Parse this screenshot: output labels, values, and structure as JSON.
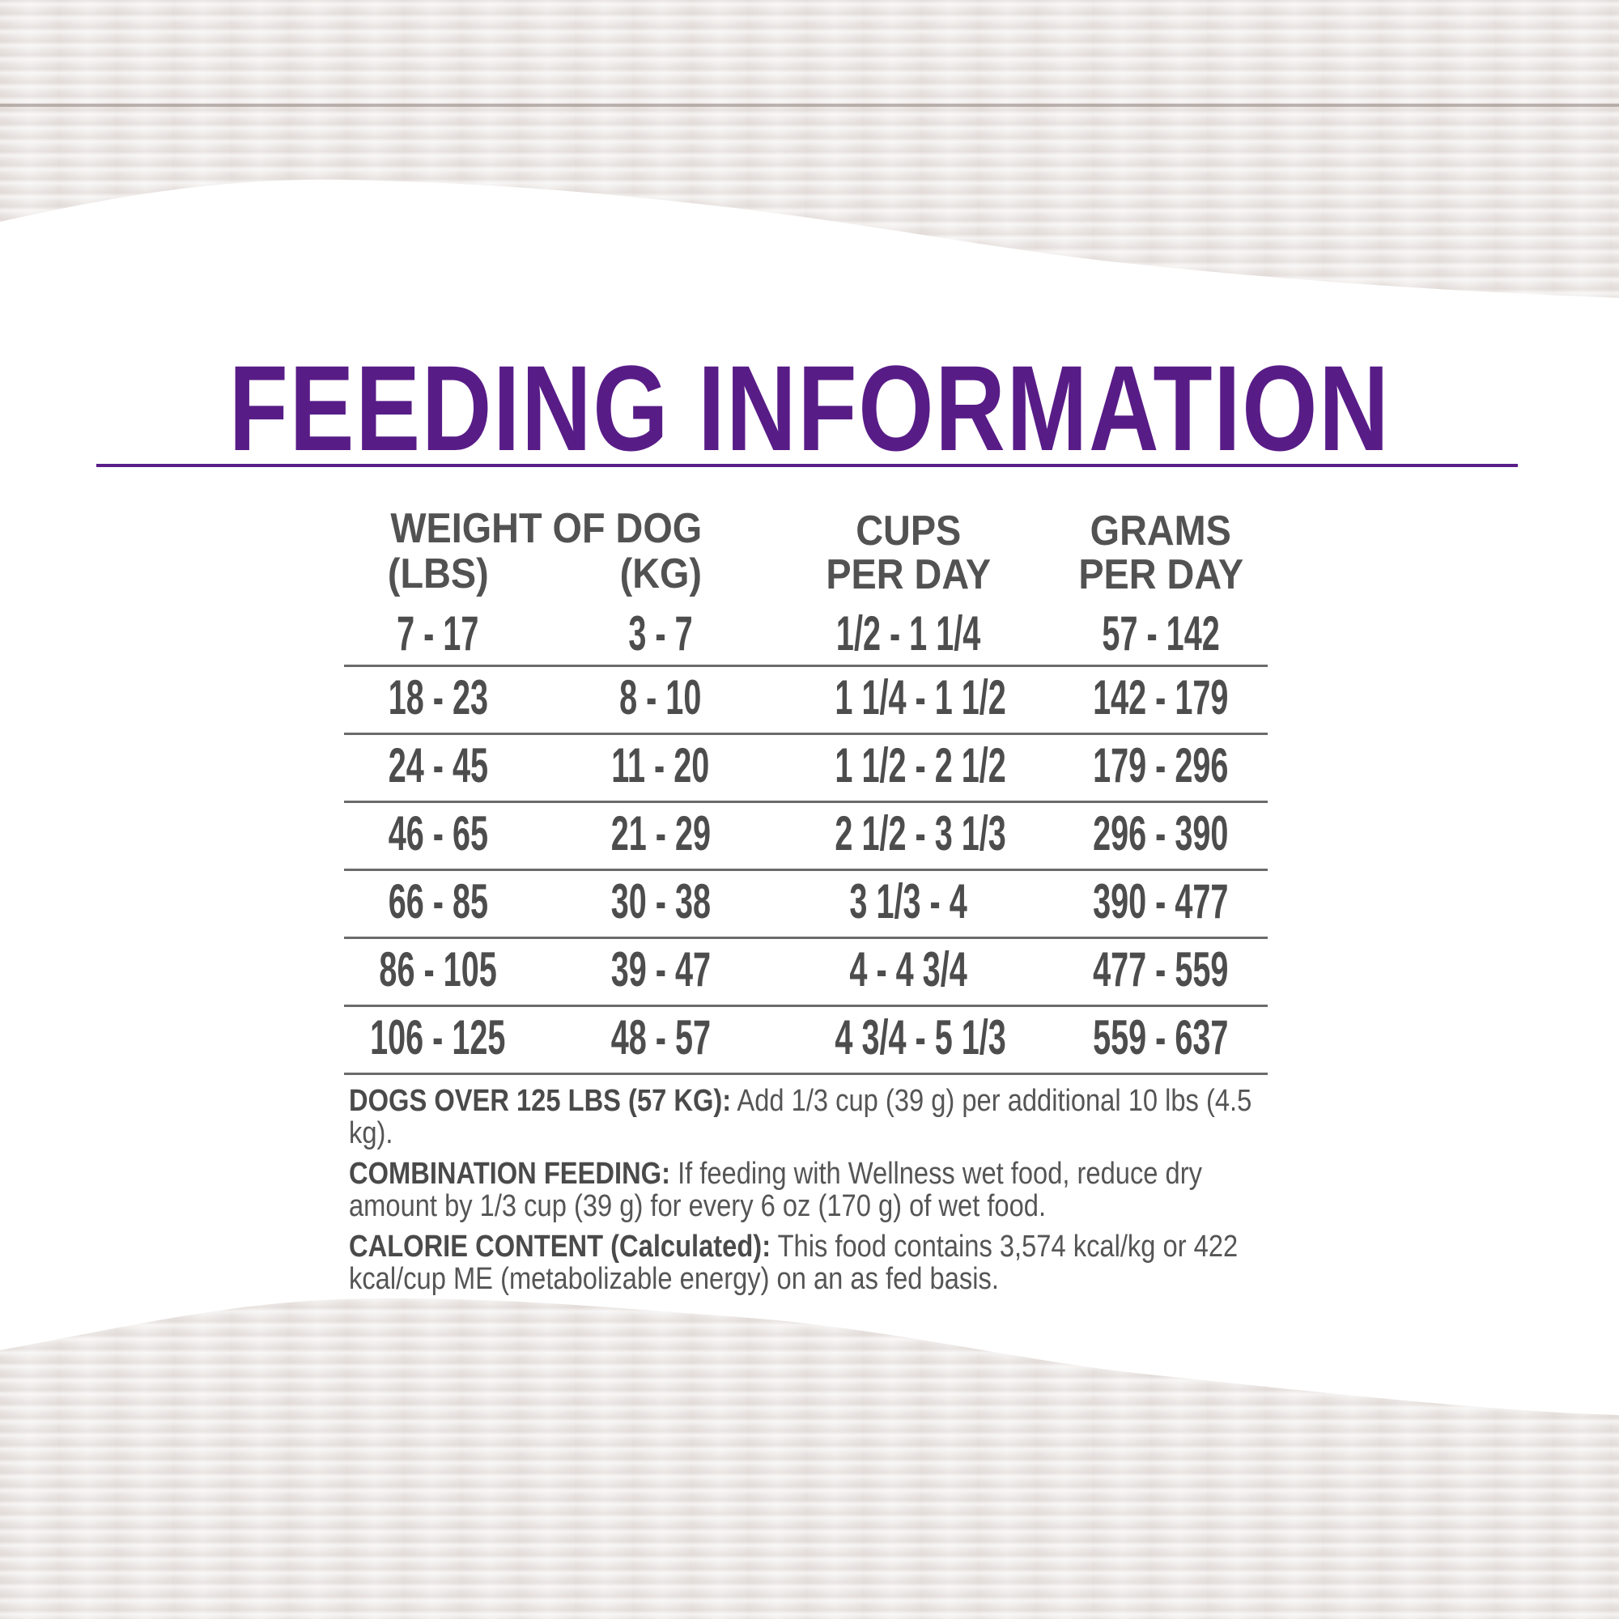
{
  "title": "FEEDING INFORMATION",
  "colors": {
    "accent": "#581c87",
    "text": "#4d4d4d"
  },
  "table": {
    "headers": {
      "weight": "WEIGHT OF DOG",
      "lbs": "(LBS)",
      "kg": "(KG)",
      "cups_1": "CUPS",
      "cups_2": "PER DAY",
      "grams_1": "GRAMS",
      "grams_2": "PER DAY"
    },
    "rows": [
      {
        "lbs": "7 - 17",
        "kg": "3 - 7",
        "cups": "1/2 - 1 1/4",
        "grams": "57 - 142"
      },
      {
        "lbs": "18 - 23",
        "kg": "8 - 10",
        "cups": "1 1/4 - 1 1/2",
        "grams": "142 - 179"
      },
      {
        "lbs": "24 - 45",
        "kg": "11 - 20",
        "cups": "1 1/2 - 2 1/2",
        "grams": "179 - 296"
      },
      {
        "lbs": "46 - 65",
        "kg": "21 - 29",
        "cups": "2 1/2 - 3 1/3",
        "grams": "296 - 390"
      },
      {
        "lbs": "66 - 85",
        "kg": "30 - 38",
        "cups": "3 1/3 - 4",
        "grams": "390 - 477"
      },
      {
        "lbs": "86 - 105",
        "kg": "39 - 47",
        "cups": "4 - 4 3/4",
        "grams": "477 - 559"
      },
      {
        "lbs": "106 - 125",
        "kg": "48 - 57",
        "cups": "4 3/4 - 5 1/3",
        "grams": "559 - 637"
      }
    ]
  },
  "notes": [
    {
      "label": "DOGS OVER 125 LBS (57 KG):",
      "text": " Add 1/3 cup (39 g) per additional 10 lbs (4.5 kg)."
    },
    {
      "label": "COMBINATION FEEDING:",
      "text": " If feeding with Wellness wet food, reduce dry amount by 1/3 cup (39 g) for every 6 oz (170 g) of wet food."
    },
    {
      "label": "CALORIE CONTENT (Calculated):",
      "text": " This food contains 3,574 kcal/kg or 422 kcal/cup ME (metabolizable energy) on an as fed basis."
    }
  ]
}
